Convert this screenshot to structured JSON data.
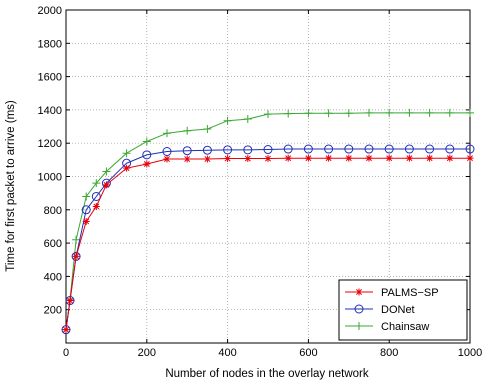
{
  "chart_data": {
    "type": "line",
    "xlabel": "Number of nodes in the overlay network",
    "ylabel": "Time for first packet to arrive (ms)",
    "xlim": [
      0,
      1000
    ],
    "ylim": [
      0,
      2000
    ],
    "xticks": [
      0,
      200,
      400,
      600,
      800,
      1000
    ],
    "yticks": [
      200,
      400,
      600,
      800,
      1000,
      1200,
      1400,
      1600,
      1800,
      2000
    ],
    "grid": true,
    "legend_position": "bottom-right",
    "series": [
      {
        "name": "PALMS−SP",
        "color": "#e8000b",
        "marker": "asterisk",
        "x": [
          0,
          10,
          25,
          50,
          75,
          100,
          150,
          200,
          250,
          300,
          350,
          400,
          450,
          500,
          550,
          600,
          650,
          700,
          750,
          800,
          850,
          900,
          950,
          1000
        ],
        "y": [
          80,
          255,
          520,
          730,
          820,
          950,
          1050,
          1075,
          1105,
          1105,
          1105,
          1108,
          1108,
          1108,
          1110,
          1110,
          1110,
          1110,
          1110,
          1110,
          1110,
          1110,
          1110,
          1110
        ]
      },
      {
        "name": "DONet",
        "color": "#1f2fb8",
        "marker": "circle",
        "x": [
          0,
          10,
          25,
          50,
          75,
          100,
          150,
          200,
          250,
          300,
          350,
          400,
          450,
          500,
          550,
          600,
          650,
          700,
          750,
          800,
          850,
          900,
          950,
          1000
        ],
        "y": [
          80,
          255,
          520,
          800,
          880,
          960,
          1080,
          1130,
          1150,
          1155,
          1158,
          1160,
          1160,
          1162,
          1165,
          1165,
          1165,
          1165,
          1165,
          1165,
          1165,
          1165,
          1165,
          1165
        ]
      },
      {
        "name": "Chainsaw",
        "color": "#3aa832",
        "marker": "plus",
        "x": [
          0,
          10,
          25,
          50,
          75,
          100,
          150,
          200,
          250,
          300,
          350,
          400,
          450,
          500,
          550,
          600,
          650,
          700,
          750,
          800,
          850,
          900,
          950,
          1000
        ],
        "y": [
          80,
          260,
          620,
          880,
          960,
          1030,
          1140,
          1210,
          1260,
          1275,
          1285,
          1335,
          1345,
          1375,
          1378,
          1380,
          1380,
          1380,
          1382,
          1382,
          1382,
          1382,
          1382,
          1382
        ]
      }
    ]
  }
}
